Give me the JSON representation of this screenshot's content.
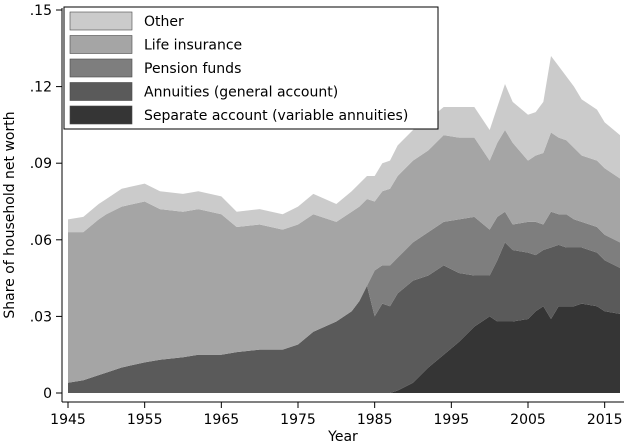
{
  "chart_data": {
    "type": "area",
    "stacked": true,
    "xlabel": "Year",
    "ylabel": "Share of household net worth",
    "xlim": [
      1945,
      2017
    ],
    "ylim": [
      0,
      0.15
    ],
    "xticks": [
      1945,
      1955,
      1965,
      1975,
      1985,
      1995,
      2005,
      2015
    ],
    "yticks": [
      0,
      0.03,
      0.06,
      0.09,
      0.12,
      0.15
    ],
    "ytick_labels": [
      "0",
      ".03",
      ".06",
      ".09",
      ".12",
      ".15"
    ],
    "legend_position": "top-left",
    "x": [
      1945,
      1947,
      1949,
      1950,
      1952,
      1955,
      1957,
      1960,
      1962,
      1965,
      1967,
      1970,
      1973,
      1975,
      1977,
      1980,
      1982,
      1983,
      1984,
      1985,
      1986,
      1987,
      1988,
      1990,
      1992,
      1994,
      1996,
      1998,
      2000,
      2001,
      2002,
      2003,
      2005,
      2006,
      2007,
      2008,
      2009,
      2010,
      2011,
      2012,
      2014,
      2015,
      2017
    ],
    "series": [
      {
        "name": "Separate account (variable annuities)",
        "color": "#353535",
        "values": [
          0,
          0,
          0,
          0,
          0,
          0,
          0,
          0,
          0,
          0,
          0,
          0,
          0,
          0,
          0,
          0,
          0,
          0,
          0,
          0,
          0,
          0,
          0.001,
          0.004,
          0.01,
          0.015,
          0.02,
          0.026,
          0.03,
          0.028,
          0.028,
          0.028,
          0.029,
          0.032,
          0.034,
          0.029,
          0.034,
          0.034,
          0.034,
          0.035,
          0.034,
          0.032,
          0.031
        ]
      },
      {
        "name": "Annuities (general account)",
        "color": "#5a5a5a",
        "values": [
          0.004,
          0.005,
          0.007,
          0.008,
          0.01,
          0.012,
          0.013,
          0.014,
          0.015,
          0.015,
          0.016,
          0.017,
          0.017,
          0.019,
          0.024,
          0.028,
          0.032,
          0.036,
          0.042,
          0.03,
          0.035,
          0.034,
          0.038,
          0.04,
          0.036,
          0.035,
          0.027,
          0.02,
          0.016,
          0.024,
          0.031,
          0.028,
          0.026,
          0.022,
          0.022,
          0.028,
          0.024,
          0.023,
          0.023,
          0.022,
          0.021,
          0.02,
          0.018
        ]
      },
      {
        "name": "Pension funds",
        "color": "#7e7e7e",
        "values": [
          0,
          0,
          0,
          0,
          0,
          0,
          0,
          0,
          0,
          0,
          0,
          0,
          0,
          0,
          0,
          0,
          0,
          0,
          0,
          0.018,
          0.015,
          0.016,
          0.014,
          0.015,
          0.017,
          0.017,
          0.021,
          0.023,
          0.018,
          0.017,
          0.012,
          0.01,
          0.012,
          0.013,
          0.01,
          0.014,
          0.012,
          0.013,
          0.011,
          0.01,
          0.01,
          0.01,
          0.01
        ]
      },
      {
        "name": "Life insurance",
        "color": "#a5a5a5",
        "values": [
          0.059,
          0.058,
          0.061,
          0.062,
          0.063,
          0.063,
          0.059,
          0.057,
          0.057,
          0.055,
          0.049,
          0.049,
          0.047,
          0.047,
          0.046,
          0.039,
          0.039,
          0.037,
          0.034,
          0.027,
          0.029,
          0.03,
          0.032,
          0.032,
          0.032,
          0.034,
          0.032,
          0.031,
          0.027,
          0.029,
          0.032,
          0.032,
          0.024,
          0.026,
          0.028,
          0.031,
          0.03,
          0.029,
          0.028,
          0.026,
          0.026,
          0.026,
          0.025
        ]
      },
      {
        "name": "Other",
        "color": "#cbcbcb",
        "values": [
          0.005,
          0.006,
          0.006,
          0.006,
          0.007,
          0.007,
          0.007,
          0.007,
          0.007,
          0.007,
          0.006,
          0.006,
          0.006,
          0.007,
          0.008,
          0.007,
          0.008,
          0.009,
          0.009,
          0.01,
          0.011,
          0.011,
          0.012,
          0.012,
          0.012,
          0.011,
          0.012,
          0.012,
          0.012,
          0.014,
          0.018,
          0.016,
          0.018,
          0.017,
          0.02,
          0.03,
          0.028,
          0.025,
          0.024,
          0.022,
          0.02,
          0.018,
          0.017
        ]
      }
    ],
    "legend": [
      {
        "label": "Other",
        "color": "#cbcbcb"
      },
      {
        "label": "Life insurance",
        "color": "#a5a5a5"
      },
      {
        "label": "Pension funds",
        "color": "#7e7e7e"
      },
      {
        "label": "Annuities (general account)",
        "color": "#5a5a5a"
      },
      {
        "label": "Separate account (variable annuities)",
        "color": "#353535"
      }
    ]
  }
}
